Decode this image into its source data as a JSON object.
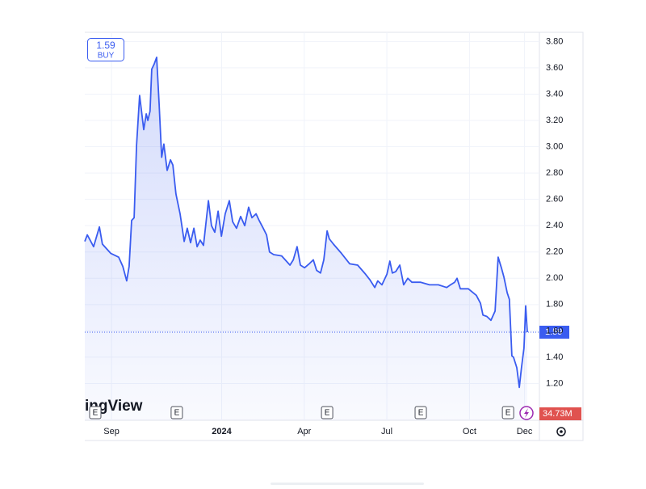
{
  "chart_data": {
    "type": "line",
    "watermark": "ingView",
    "buy_label": "BUY",
    "volume_label": "34.73M",
    "color": "#3a5cf0",
    "xlim": [
      0,
      16.54
    ],
    "xticks": [
      {
        "value": 1,
        "label": "Sep"
      },
      {
        "value": 5,
        "label": "2024"
      },
      {
        "value": 8,
        "label": "Apr"
      },
      {
        "value": 11,
        "label": "Jul"
      },
      {
        "value": 14,
        "label": "Oct"
      },
      {
        "value": 16,
        "label": "Dec"
      }
    ],
    "ylim": [
      0.92,
      3.87
    ],
    "yticks": [
      {
        "value": 1.2,
        "label": "1.20"
      },
      {
        "value": 1.4,
        "label": "1.40"
      },
      {
        "value": 1.6,
        "label": "1.60"
      },
      {
        "value": 1.8,
        "label": "1.80"
      },
      {
        "value": 2.0,
        "label": "2.00"
      },
      {
        "value": 2.2,
        "label": "2.20"
      },
      {
        "value": 2.4,
        "label": "2.40"
      },
      {
        "value": 2.6,
        "label": "2.60"
      },
      {
        "value": 2.8,
        "label": "2.80"
      },
      {
        "value": 3.0,
        "label": "3.00"
      },
      {
        "value": 3.2,
        "label": "3.20"
      },
      {
        "value": 3.4,
        "label": "3.40"
      },
      {
        "value": 3.6,
        "label": "3.60"
      },
      {
        "value": 3.8,
        "label": "3.80"
      }
    ],
    "grid": true,
    "events": [
      {
        "x": 0.41,
        "label": "E"
      },
      {
        "x": 3.37,
        "label": "E"
      },
      {
        "x": 8.83,
        "label": "E"
      },
      {
        "x": 12.23,
        "label": "E"
      },
      {
        "x": 15.4,
        "label": "E"
      }
    ],
    "x": [
      0.03,
      0.12,
      0.35,
      0.56,
      0.67,
      0.97,
      1.26,
      1.41,
      1.55,
      1.64,
      1.73,
      1.82,
      1.91,
      2.02,
      2.17,
      2.26,
      2.32,
      2.4,
      2.46,
      2.55,
      2.64,
      2.73,
      2.82,
      2.9,
      3.02,
      3.14,
      3.23,
      3.34,
      3.49,
      3.64,
      3.75,
      3.87,
      3.99,
      4.11,
      4.22,
      4.34,
      4.52,
      4.63,
      4.75,
      4.87,
      4.99,
      5.13,
      5.28,
      5.4,
      5.54,
      5.69,
      5.84,
      5.98,
      6.1,
      6.25,
      6.36,
      6.51,
      6.63,
      6.74,
      6.89,
      7.18,
      7.48,
      7.6,
      7.74,
      7.86,
      8.01,
      8.18,
      8.33,
      8.45,
      8.59,
      8.71,
      8.83,
      8.91,
      9.06,
      9.35,
      9.65,
      9.94,
      10.23,
      10.38,
      10.56,
      10.67,
      10.82,
      11.0,
      11.11,
      11.2,
      11.32,
      11.47,
      11.61,
      11.76,
      11.91,
      12.23,
      12.55,
      12.87,
      13.17,
      13.31,
      13.46,
      13.55,
      13.67,
      13.96,
      14.25,
      14.4,
      14.49,
      14.63,
      14.78,
      14.93,
      15.04,
      15.16,
      15.25,
      15.37,
      15.45,
      15.54,
      15.6,
      15.72,
      15.81,
      15.89,
      15.98,
      16.04,
      16.1
    ],
    "series": [
      {
        "name": "Price",
        "values": [
          2.28,
          2.33,
          2.24,
          2.39,
          2.26,
          2.19,
          2.16,
          2.09,
          1.98,
          2.09,
          2.44,
          2.46,
          3.01,
          3.39,
          3.13,
          3.25,
          3.2,
          3.27,
          3.59,
          3.63,
          3.68,
          3.32,
          2.92,
          3.02,
          2.82,
          2.9,
          2.86,
          2.64,
          2.49,
          2.28,
          2.38,
          2.27,
          2.38,
          2.24,
          2.29,
          2.25,
          2.59,
          2.4,
          2.35,
          2.51,
          2.32,
          2.49,
          2.59,
          2.43,
          2.38,
          2.47,
          2.4,
          2.54,
          2.46,
          2.49,
          2.44,
          2.38,
          2.33,
          2.2,
          2.18,
          2.17,
          2.1,
          2.14,
          2.24,
          2.1,
          2.08,
          2.11,
          2.14,
          2.06,
          2.04,
          2.14,
          2.36,
          2.3,
          2.26,
          2.19,
          2.11,
          2.1,
          2.03,
          1.99,
          1.93,
          1.98,
          1.95,
          2.03,
          2.13,
          2.04,
          2.05,
          2.1,
          1.95,
          2.0,
          1.97,
          1.97,
          1.95,
          1.95,
          1.93,
          1.95,
          1.97,
          2.0,
          1.92,
          1.92,
          1.87,
          1.81,
          1.72,
          1.71,
          1.68,
          1.75,
          2.16,
          2.08,
          2.01,
          1.89,
          1.84,
          1.41,
          1.4,
          1.32,
          1.17,
          1.32,
          1.47,
          1.79,
          1.59
        ]
      }
    ]
  }
}
